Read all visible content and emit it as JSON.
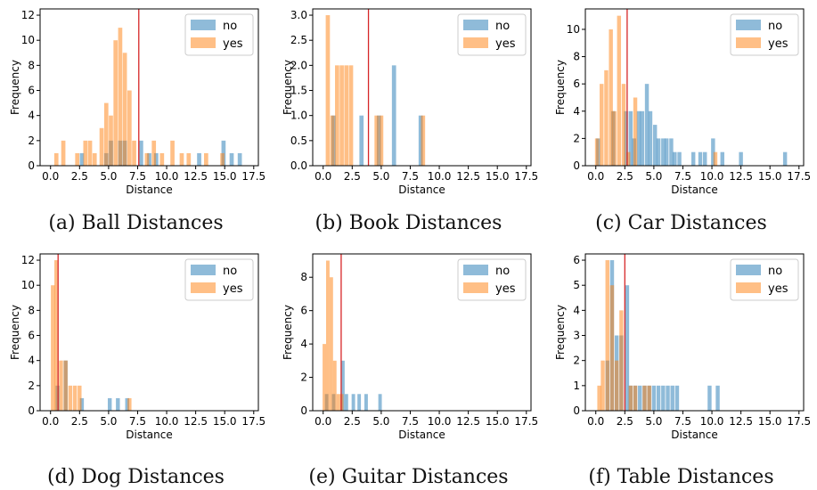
{
  "colors": {
    "no": "#1f77b4",
    "yes": "#ff7f0e",
    "vline": "#d62728"
  },
  "chart_data": [
    {
      "type": "histogram",
      "caption": "(a) Ball Distances",
      "xlabel": "Distance",
      "ylabel": "Frequency",
      "xlim": [
        -0.9,
        17.9
      ],
      "ylim": [
        0,
        12.5
      ],
      "xticks": [
        "0.0",
        "2.5",
        "5.0",
        "7.5",
        "10.0",
        "12.5",
        "15.0",
        "17.5"
      ],
      "yticks": [
        "0",
        "2",
        "4",
        "6",
        "8",
        "10",
        "12"
      ],
      "legend": [
        "no",
        "yes"
      ],
      "legend_position": "top-right",
      "bin_width": 0.36,
      "vline": 7.6,
      "series": [
        {
          "name": "no",
          "bins": [
            [
              2.7,
              1
            ],
            [
              4.8,
              1
            ],
            [
              5.2,
              2
            ],
            [
              6.0,
              2
            ],
            [
              6.4,
              2
            ],
            [
              7.8,
              2
            ],
            [
              8.5,
              1
            ],
            [
              9.1,
              1
            ],
            [
              12.8,
              1
            ],
            [
              14.9,
              2
            ],
            [
              15.6,
              1
            ],
            [
              16.3,
              1
            ]
          ]
        },
        {
          "name": "yes",
          "bins": [
            [
              0.5,
              1
            ],
            [
              1.1,
              2
            ],
            [
              2.3,
              1
            ],
            [
              3.0,
              2
            ],
            [
              3.4,
              2
            ],
            [
              3.8,
              1
            ],
            [
              4.4,
              3
            ],
            [
              4.8,
              5
            ],
            [
              5.2,
              4
            ],
            [
              5.6,
              10
            ],
            [
              6.0,
              11
            ],
            [
              6.4,
              9
            ],
            [
              6.8,
              6
            ],
            [
              7.2,
              2
            ],
            [
              8.3,
              1
            ],
            [
              8.9,
              2
            ],
            [
              9.6,
              1
            ],
            [
              10.5,
              2
            ],
            [
              11.3,
              1
            ],
            [
              11.9,
              1
            ],
            [
              13.4,
              1
            ],
            [
              14.8,
              1
            ]
          ]
        }
      ]
    },
    {
      "type": "histogram",
      "caption": "(b) Book Distances",
      "xlabel": "Distance",
      "ylabel": "Frequency",
      "xlim": [
        -0.9,
        17.9
      ],
      "ylim": [
        0,
        3.125
      ],
      "xticks": [
        "0.0",
        "2.5",
        "5.0",
        "7.5",
        "10.0",
        "12.5",
        "15.0",
        "17.5"
      ],
      "yticks": [
        "0.0",
        "0.5",
        "1.0",
        "1.5",
        "2.0",
        "2.5",
        "3.0"
      ],
      "legend": [
        "no",
        "yes"
      ],
      "legend_position": "top-right",
      "bin_width": 0.36,
      "vline": 3.9,
      "series": [
        {
          "name": "no",
          "bins": [
            [
              0.9,
              1
            ],
            [
              3.3,
              1
            ],
            [
              4.8,
              1
            ],
            [
              6.1,
              2
            ],
            [
              8.4,
              1
            ]
          ]
        },
        {
          "name": "yes",
          "bins": [
            [
              0.4,
              3
            ],
            [
              0.8,
              1
            ],
            [
              1.2,
              2
            ],
            [
              1.6,
              2
            ],
            [
              2.0,
              2
            ],
            [
              2.4,
              2
            ],
            [
              4.6,
              1
            ],
            [
              5.0,
              1
            ],
            [
              8.6,
              1
            ]
          ]
        }
      ]
    },
    {
      "type": "histogram",
      "caption": "(c) Car Distances",
      "xlabel": "Distance",
      "ylabel": "Frequency",
      "xlim": [
        -0.9,
        17.9
      ],
      "ylim": [
        0,
        11.5
      ],
      "xticks": [
        "0.0",
        "2.5",
        "5.0",
        "7.5",
        "10.0",
        "12.5",
        "15.0",
        "17.5"
      ],
      "yticks": [
        "0",
        "2",
        "4",
        "6",
        "8",
        "10"
      ],
      "legend": [
        "no",
        "yes"
      ],
      "legend_position": "top-right",
      "bin_width": 0.34,
      "vline": 2.7,
      "series": [
        {
          "name": "no",
          "bins": [
            [
              0.2,
              2
            ],
            [
              1.5,
              4
            ],
            [
              2.6,
              4
            ],
            [
              3.0,
              4
            ],
            [
              3.3,
              2
            ],
            [
              3.7,
              4
            ],
            [
              4.0,
              4
            ],
            [
              4.4,
              6
            ],
            [
              4.7,
              4
            ],
            [
              5.1,
              3
            ],
            [
              5.4,
              2
            ],
            [
              5.8,
              2
            ],
            [
              6.1,
              2
            ],
            [
              6.5,
              2
            ],
            [
              6.8,
              1
            ],
            [
              7.2,
              1
            ],
            [
              8.4,
              1
            ],
            [
              9.0,
              1
            ],
            [
              9.4,
              1
            ],
            [
              10.1,
              2
            ],
            [
              10.9,
              1
            ],
            [
              12.5,
              1
            ],
            [
              16.3,
              1
            ]
          ]
        },
        {
          "name": "yes",
          "bins": [
            [
              0.1,
              2
            ],
            [
              0.5,
              6
            ],
            [
              0.9,
              7
            ],
            [
              1.3,
              10
            ],
            [
              1.6,
              4
            ],
            [
              2.0,
              11
            ],
            [
              2.4,
              6
            ],
            [
              2.8,
              1
            ],
            [
              3.4,
              5
            ],
            [
              10.3,
              1
            ]
          ]
        }
      ]
    },
    {
      "type": "histogram",
      "caption": "(d) Dog Distances",
      "xlabel": "Distance",
      "ylabel": "Frequency",
      "xlim": [
        -0.9,
        17.9
      ],
      "ylim": [
        0,
        12.5
      ],
      "xticks": [
        "0.0",
        "2.5",
        "5.0",
        "7.5",
        "10.0",
        "12.5",
        "15.0",
        "17.5"
      ],
      "yticks": [
        "0",
        "2",
        "4",
        "6",
        "8",
        "10",
        "12"
      ],
      "legend": [
        "no",
        "yes"
      ],
      "legend_position": "top-right",
      "bin_width": 0.34,
      "vline": 0.65,
      "series": [
        {
          "name": "no",
          "bins": [
            [
              0.6,
              2
            ],
            [
              1.3,
              4
            ],
            [
              2.7,
              1
            ],
            [
              5.1,
              1
            ],
            [
              5.8,
              1
            ],
            [
              6.6,
              1
            ]
          ]
        },
        {
          "name": "yes",
          "bins": [
            [
              0.2,
              10
            ],
            [
              0.5,
              12
            ],
            [
              0.9,
              4
            ],
            [
              1.3,
              4
            ],
            [
              1.7,
              2
            ],
            [
              2.1,
              2
            ],
            [
              2.5,
              2
            ],
            [
              6.8,
              1
            ]
          ]
        }
      ]
    },
    {
      "type": "histogram",
      "caption": "(e) Guitar Distances",
      "xlabel": "Distance",
      "ylabel": "Frequency",
      "xlim": [
        -0.9,
        17.9
      ],
      "ylim": [
        0,
        9.4
      ],
      "xticks": [
        "0.0",
        "2.5",
        "5.0",
        "7.5",
        "10.0",
        "12.5",
        "15.0",
        "17.5"
      ],
      "yticks": [
        "0",
        "2",
        "4",
        "6",
        "8"
      ],
      "legend": [
        "no",
        "yes"
      ],
      "legend_position": "top-right",
      "bin_width": 0.3,
      "vline": 1.55,
      "series": [
        {
          "name": "no",
          "bins": [
            [
              0.3,
              1
            ],
            [
              0.9,
              1
            ],
            [
              1.7,
              3
            ],
            [
              2.0,
              1
            ],
            [
              2.6,
              1
            ],
            [
              3.1,
              1
            ],
            [
              3.7,
              1
            ],
            [
              4.9,
              1
            ]
          ]
        },
        {
          "name": "yes",
          "bins": [
            [
              0.1,
              4
            ],
            [
              0.4,
              9
            ],
            [
              0.7,
              8
            ],
            [
              1.0,
              3
            ],
            [
              1.3,
              1
            ],
            [
              1.6,
              1
            ]
          ]
        }
      ]
    },
    {
      "type": "histogram",
      "caption": "(f) Table Distances",
      "xlabel": "Distance",
      "ylabel": "Frequency",
      "xlim": [
        -0.9,
        17.9
      ],
      "ylim": [
        0,
        6.25
      ],
      "xticks": [
        "0.0",
        "2.5",
        "5.0",
        "7.5",
        "10.0",
        "12.5",
        "15.0",
        "17.5"
      ],
      "yticks": [
        "0",
        "1",
        "2",
        "3",
        "4",
        "5",
        "6"
      ],
      "legend": [
        "no",
        "yes"
      ],
      "legend_position": "top-right",
      "bin_width": 0.34,
      "vline": 2.5,
      "series": [
        {
          "name": "no",
          "bins": [
            [
              1.0,
              2
            ],
            [
              1.4,
              6
            ],
            [
              1.8,
              3
            ],
            [
              2.2,
              3
            ],
            [
              2.7,
              5
            ],
            [
              3.0,
              1
            ],
            [
              3.4,
              1
            ],
            [
              3.8,
              1
            ],
            [
              4.2,
              1
            ],
            [
              4.6,
              1
            ],
            [
              5.0,
              1
            ],
            [
              5.4,
              1
            ],
            [
              5.8,
              1
            ],
            [
              6.2,
              1
            ],
            [
              6.6,
              1
            ],
            [
              7.0,
              1
            ],
            [
              9.8,
              1
            ],
            [
              10.5,
              1
            ]
          ]
        },
        {
          "name": "yes",
          "bins": [
            [
              0.3,
              1
            ],
            [
              0.6,
              2
            ],
            [
              1.0,
              6
            ],
            [
              1.4,
              5
            ],
            [
              1.8,
              2
            ],
            [
              2.2,
              4
            ],
            [
              3.0,
              1
            ],
            [
              3.4,
              1
            ],
            [
              4.2,
              1
            ],
            [
              4.6,
              1
            ]
          ]
        }
      ]
    }
  ]
}
